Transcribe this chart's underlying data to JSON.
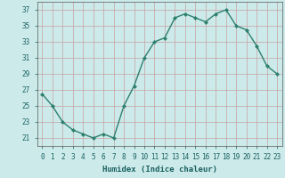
{
  "x": [
    0,
    1,
    2,
    3,
    4,
    5,
    6,
    7,
    8,
    9,
    10,
    11,
    12,
    13,
    14,
    15,
    16,
    17,
    18,
    19,
    20,
    21,
    22,
    23
  ],
  "y": [
    26.5,
    25,
    23,
    22,
    21.5,
    21,
    21.5,
    21,
    25,
    27.5,
    31,
    33,
    33.5,
    36,
    36.5,
    36,
    35.5,
    36.5,
    37,
    35,
    34.5,
    32.5,
    30,
    29
  ],
  "line_color": "#2d7f6e",
  "marker": "D",
  "marker_size": 2.0,
  "bg_color": "#cceaea",
  "grid_color": "#c8a0a0",
  "xlabel": "Humidex (Indice chaleur)",
  "xlim": [
    -0.5,
    23.5
  ],
  "ylim": [
    20.0,
    38.0
  ],
  "yticks": [
    21,
    23,
    25,
    27,
    29,
    31,
    33,
    35,
    37
  ],
  "xticks": [
    0,
    1,
    2,
    3,
    4,
    5,
    6,
    7,
    8,
    9,
    10,
    11,
    12,
    13,
    14,
    15,
    16,
    17,
    18,
    19,
    20,
    21,
    22,
    23
  ],
  "tick_label_fontsize": 5.5,
  "xlabel_fontsize": 6.5,
  "line_width": 1.0
}
